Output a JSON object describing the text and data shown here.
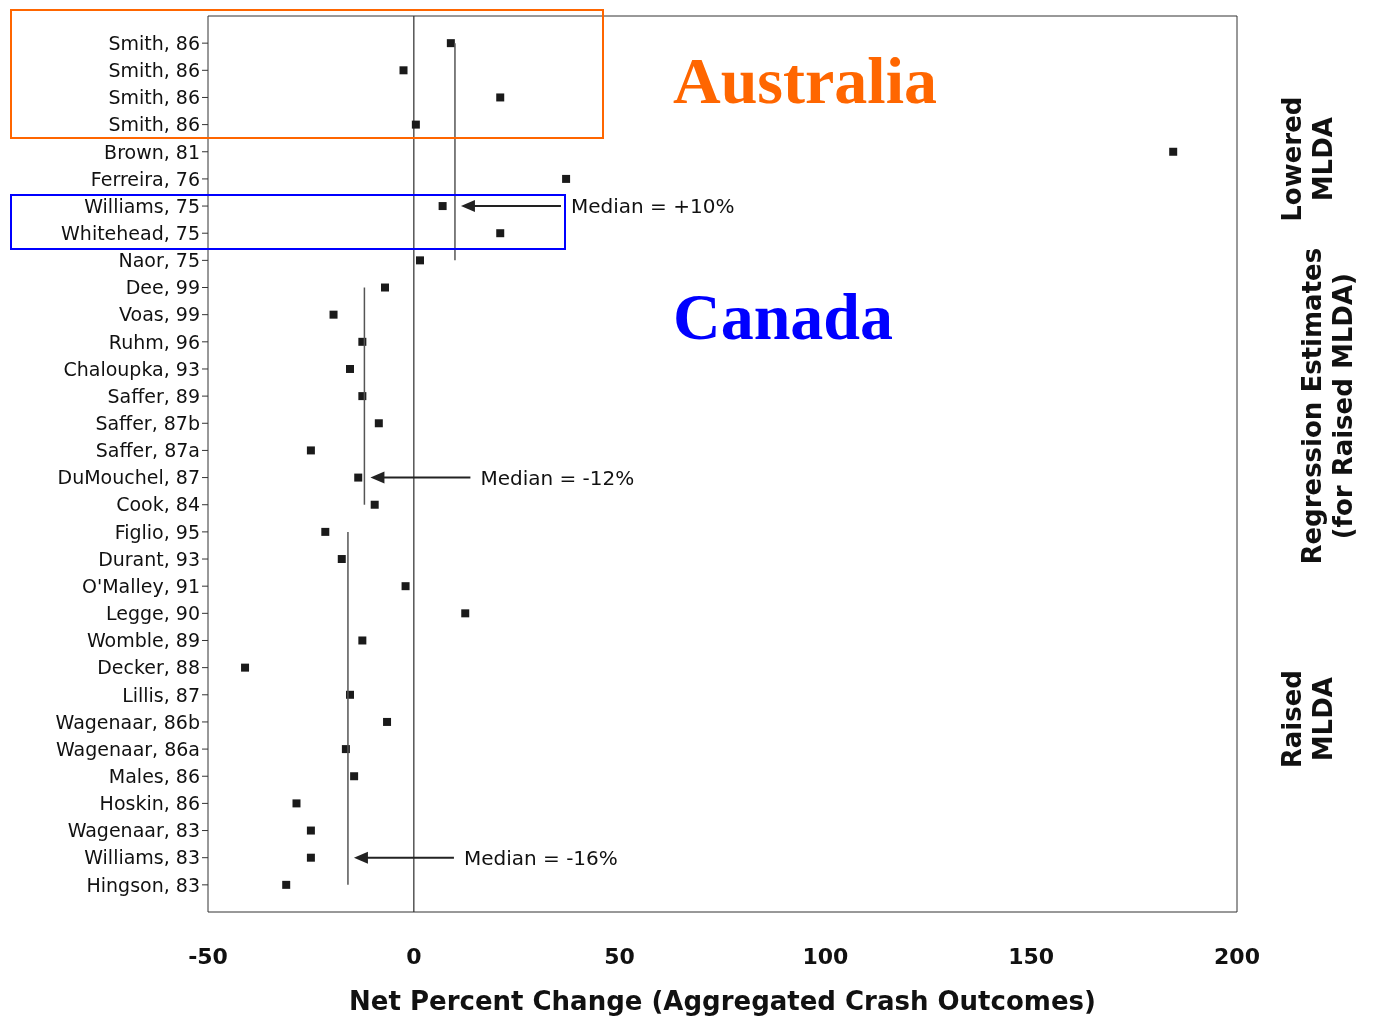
{
  "chart_data": {
    "type": "scatter",
    "orientation": "horizontal",
    "xlabel": "Net Percent Change (Aggregated Crash Outcomes)",
    "categories": [
      "Smith, 86",
      "Smith, 86",
      "Smith, 86",
      "Smith, 86",
      "Brown, 81",
      "Ferreira, 76",
      "Williams, 75",
      "Whitehead, 75",
      "Naor, 75",
      "Dee, 99",
      "Voas, 99",
      "Ruhm, 96",
      "Chaloupka, 93",
      "Saffer, 89",
      "Saffer, 87b",
      "Saffer, 87a",
      "DuMouchel, 87",
      "Cook, 84",
      "Figlio, 95",
      "Durant, 93",
      "O'Malley, 91",
      "Legge, 90",
      "Womble, 89",
      "Decker, 88",
      "Lillis, 87",
      "Wagenaar, 86b",
      "Wagenaar, 86a",
      "Males, 86",
      "Hoskin, 86",
      "Wagenaar, 83",
      "Williams, 83",
      "Hingson, 83"
    ],
    "series": [
      {
        "color": "#1a1a1a",
        "marker": "square",
        "values": [
          9,
          -2.5,
          21,
          0.5,
          184.5,
          37,
          7,
          21,
          1.5,
          -7,
          -19.5,
          -12.5,
          -15.5,
          -12.5,
          -8.5,
          -25,
          -13.5,
          -9.5,
          -21.5,
          -17.5,
          -2,
          12.5,
          -12.5,
          -41,
          -15.5,
          -6.5,
          -16.5,
          -14.5,
          -28.5,
          -25,
          -25,
          -31
        ]
      },
      {
        "type": "line",
        "color": "#555555",
        "values": [
          10,
          10,
          10,
          10,
          10,
          10,
          10,
          10,
          10,
          null,
          null,
          null,
          null,
          null,
          null,
          null,
          null,
          null,
          null,
          null,
          null,
          null,
          null,
          null,
          null,
          null,
          null,
          null,
          null,
          null,
          null,
          null
        ]
      },
      {
        "type": "line",
        "color": "#555555",
        "values": [
          null,
          null,
          null,
          null,
          null,
          null,
          null,
          null,
          null,
          -12,
          -12,
          -12,
          -12,
          -12,
          -12,
          -12,
          -12,
          -12,
          null,
          null,
          null,
          null,
          null,
          null,
          null,
          null,
          null,
          null,
          null,
          null,
          null,
          null
        ]
      },
      {
        "type": "line",
        "color": "#555555",
        "values": [
          null,
          null,
          null,
          null,
          null,
          null,
          null,
          null,
          null,
          null,
          null,
          null,
          null,
          null,
          null,
          null,
          null,
          null,
          -16,
          -16,
          -16,
          -16,
          -16,
          -16,
          -16,
          -16,
          -16,
          -16,
          -16,
          -16,
          -16,
          -16
        ]
      }
    ],
    "xlim": [
      -50,
      200
    ],
    "xticks": [
      -50,
      0,
      50,
      100,
      150,
      200
    ],
    "ref_lines": [
      {
        "axis": "x",
        "value": 0,
        "color": "#555555"
      }
    ],
    "annotations": [
      "Median = +10%",
      "Median = -12%",
      "Median = -16%",
      "Australia",
      "Canada",
      "Lowered MLDA",
      "Regression Estimates (for Raised MLDA)",
      "Raised MLDA"
    ]
  }
}
